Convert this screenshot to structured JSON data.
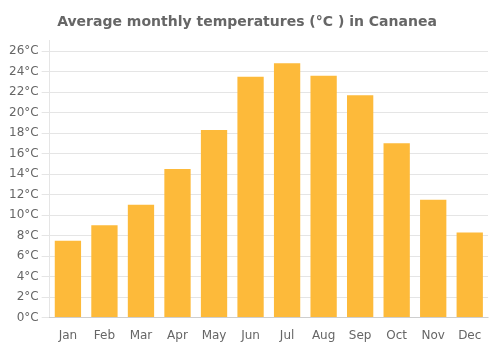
{
  "chart_data": {
    "type": "bar",
    "title": "Average monthly temperatures (°C ) in Cananea",
    "categories": [
      "Jan",
      "Feb",
      "Mar",
      "Apr",
      "May",
      "Jun",
      "Jul",
      "Aug",
      "Sep",
      "Oct",
      "Nov",
      "Dec"
    ],
    "values": [
      7.5,
      9.0,
      11.0,
      14.5,
      18.3,
      23.5,
      24.8,
      23.6,
      21.7,
      17.0,
      11.5,
      8.3
    ],
    "color": "#FDBA3A",
    "ylim": [
      0,
      27
    ],
    "yticks": [
      {
        "value": 0,
        "label": "0°C"
      },
      {
        "value": 2,
        "label": "2°C"
      },
      {
        "value": 4,
        "label": "4°C"
      },
      {
        "value": 6,
        "label": "6°C"
      },
      {
        "value": 8,
        "label": "8°C"
      },
      {
        "value": 10,
        "label": "10°C"
      },
      {
        "value": 12,
        "label": "12°C"
      },
      {
        "value": 14,
        "label": "14°C"
      },
      {
        "value": 16,
        "label": "16°C"
      },
      {
        "value": 18,
        "label": "18°C"
      },
      {
        "value": 20,
        "label": "20°C"
      },
      {
        "value": 22,
        "label": "22°C"
      },
      {
        "value": 24,
        "label": "24°C"
      },
      {
        "value": 26,
        "label": "26°C"
      }
    ],
    "grid": true
  }
}
